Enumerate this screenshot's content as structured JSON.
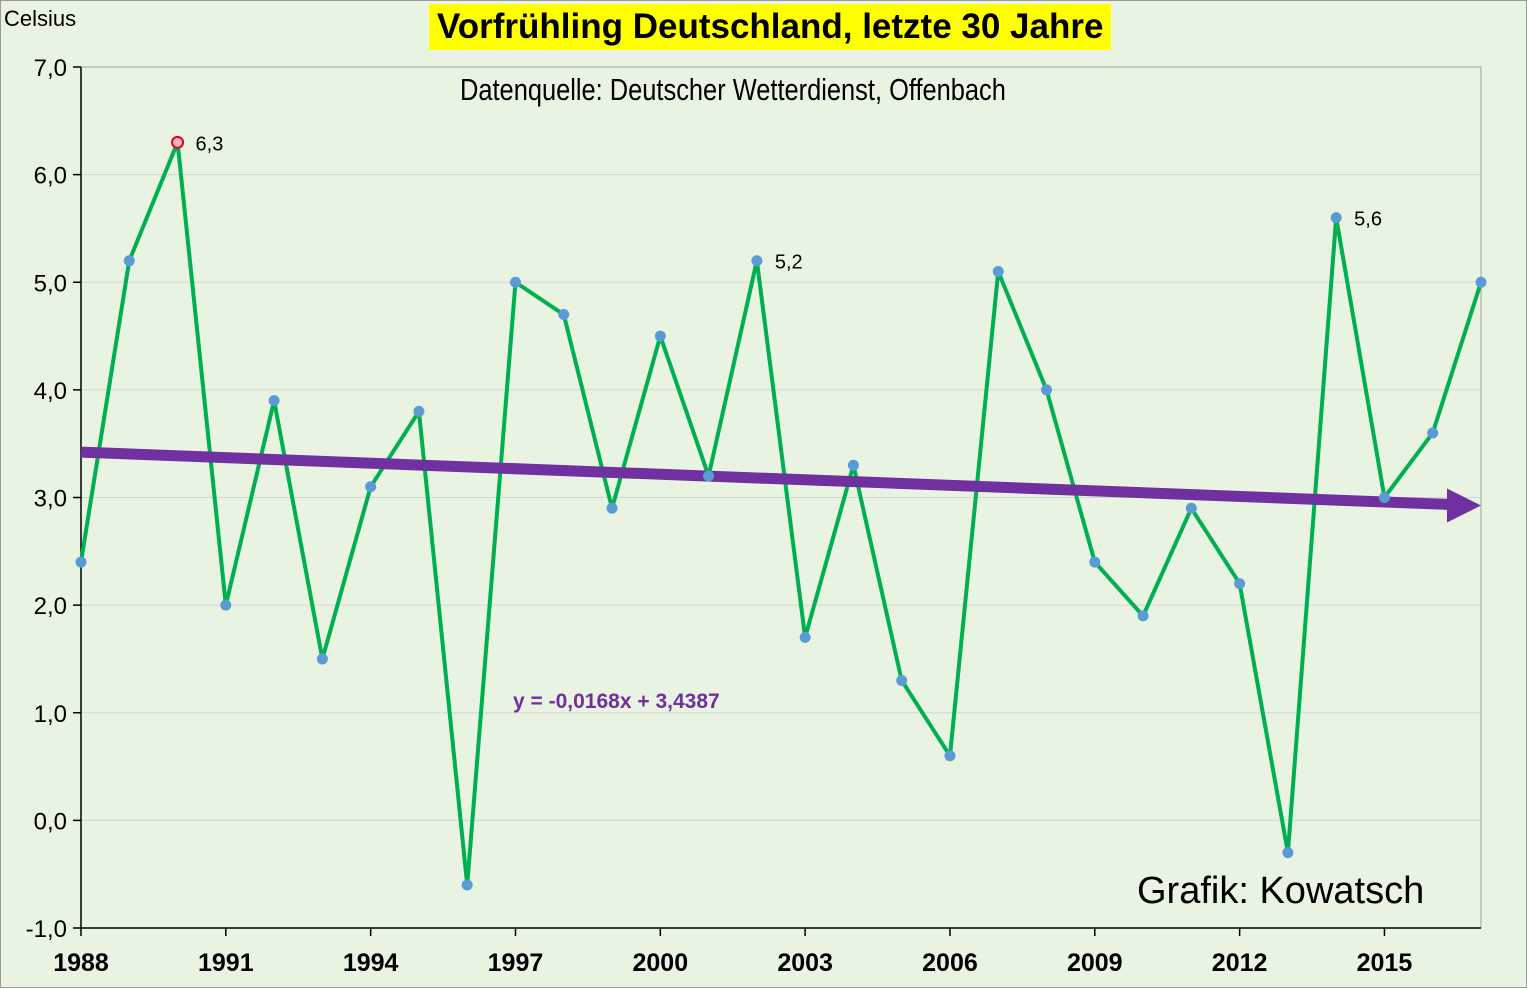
{
  "chart_data": {
    "type": "line",
    "title": "Vorfrühling Deutschland, letzte 30 Jahre",
    "subtitle": "Datenquelle: Deutscher Wetterdienst, Offenbach",
    "ylabel": "Celsius",
    "xlabel": "",
    "credit": "Grafik: Kowatsch",
    "ylim": [
      -1.0,
      7.0
    ],
    "yticks": [
      "-1,0",
      "0,0",
      "1,0",
      "2,0",
      "3,0",
      "4,0",
      "5,0",
      "6,0",
      "7,0"
    ],
    "xticks": [
      "1988",
      "1991",
      "1994",
      "1997",
      "2000",
      "2003",
      "2006",
      "2009",
      "2012",
      "2015"
    ],
    "grid": true,
    "x": [
      1988,
      1989,
      1990,
      1991,
      1992,
      1993,
      1994,
      1995,
      1996,
      1997,
      1998,
      1999,
      2000,
      2001,
      2002,
      2003,
      2004,
      2005,
      2006,
      2007,
      2008,
      2009,
      2010,
      2011,
      2012,
      2013,
      2014,
      2015,
      2016,
      2017
    ],
    "series": [
      {
        "name": "Vorfrühling",
        "color": "#00b050",
        "marker_color": "#5b9bd5",
        "values": [
          2.4,
          5.2,
          6.3,
          2.0,
          3.9,
          1.5,
          3.1,
          3.8,
          -0.6,
          5.0,
          4.7,
          2.9,
          4.5,
          3.2,
          5.2,
          1.7,
          3.3,
          1.3,
          0.6,
          5.1,
          4.0,
          2.4,
          1.9,
          2.9,
          2.2,
          -0.3,
          5.6,
          3.0,
          3.6,
          5.0
        ]
      }
    ],
    "annotations": [
      {
        "x": 1990,
        "label": "6,3"
      },
      {
        "x": 2002,
        "label": "5,2"
      },
      {
        "x": 2014,
        "label": "5,6"
      }
    ],
    "trend": {
      "equation": "y = -0,0168x + 3,4387",
      "slope": -0.0168,
      "intercept": 3.4387,
      "color": "#7030a0"
    }
  }
}
